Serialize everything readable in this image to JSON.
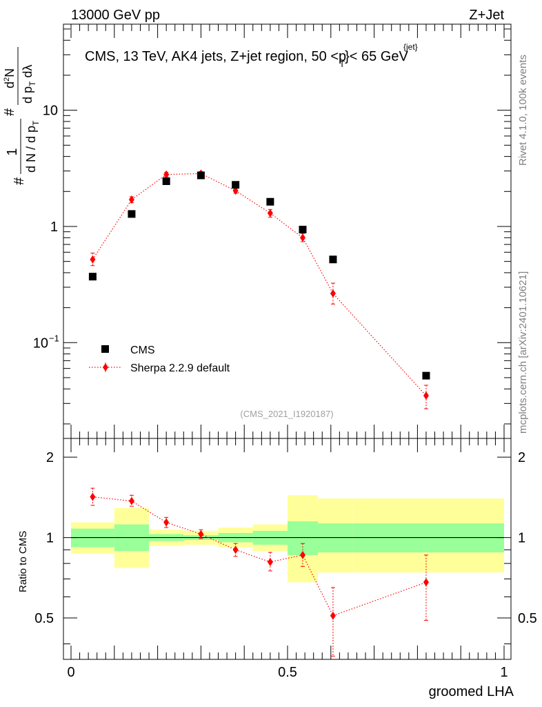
{
  "header": {
    "left_label": "13000 GeV pp",
    "right_label": "Z+Jet"
  },
  "side_labels": {
    "rivet": "Rivet 4.1.0,  100k events",
    "mcplots": "mcplots.cern.ch [arXiv:2401.10621]"
  },
  "chart_data": [
    {
      "type": "scatter",
      "panel": "main",
      "title": "CMS, 13 TeV, AK4 jets, Z+jet region, 50 <p",
      "title_sup": "{jet}",
      "title_sub": "T",
      "title_tail": "}< 65 GeV",
      "watermark": "(CMS_2021_I1920187)",
      "ylabel": {
        "hash1": "#",
        "frac_one_num": "1",
        "frac_one_den_a": "d N / d p",
        "frac_one_den_sub": "T",
        "hash2": "#",
        "frac_two_num_a": "d",
        "frac_two_num_sup": "2",
        "frac_two_num_b": "N",
        "frac_two_den_a": "d p",
        "frac_two_den_sub": "T",
        "frac_two_den_b": " d",
        "frac_two_den_c": "λ"
      },
      "xlim": [
        0,
        1
      ],
      "ylim": [
        0.015,
        55
      ],
      "yscale": "log",
      "y_ticks": [
        {
          "value": 10,
          "label": "10"
        },
        {
          "value": 1,
          "label": "1"
        },
        {
          "value": 0.1,
          "label": "10",
          "sup": "−1"
        }
      ],
      "legend": {
        "position": "lower-left",
        "entries": [
          {
            "label": "CMS",
            "marker": "square",
            "color": "#000000"
          },
          {
            "label": "Sherpa 2.2.9 default",
            "marker": "diamond",
            "color": "#ff0000",
            "line": "dotted"
          }
        ]
      },
      "series": [
        {
          "name": "CMS",
          "color": "#000000",
          "x": [
            0.05,
            0.14,
            0.22,
            0.3,
            0.38,
            0.46,
            0.535,
            0.605,
            0.82
          ],
          "y": [
            0.37,
            1.28,
            2.45,
            2.75,
            2.28,
            1.63,
            0.94,
            0.52,
            0.052
          ]
        },
        {
          "name": "Sherpa 2.2.9 default",
          "color": "#ff0000",
          "x": [
            0.05,
            0.14,
            0.22,
            0.3,
            0.38,
            0.46,
            0.535,
            0.605,
            0.82
          ],
          "y": [
            0.52,
            1.7,
            2.8,
            2.85,
            2.03,
            1.3,
            0.8,
            0.265,
            0.035
          ],
          "y_err_low": [
            0.06,
            0.1,
            0.12,
            0.12,
            0.1,
            0.1,
            0.06,
            0.05,
            0.008
          ],
          "y_err_high": [
            0.07,
            0.1,
            0.12,
            0.12,
            0.1,
            0.1,
            0.07,
            0.06,
            0.008
          ]
        }
      ]
    },
    {
      "type": "scatter",
      "panel": "ratio",
      "ylabel": "Ratio to CMS",
      "xlabel": "groomed LHA",
      "xlim": [
        0,
        1
      ],
      "ylim": [
        0.35,
        2.35
      ],
      "yscale": "log",
      "x_ticks": [
        {
          "value": 0,
          "label": "0"
        },
        {
          "value": 0.5,
          "label": "0.5"
        },
        {
          "value": 1,
          "label": "1"
        }
      ],
      "y_ticks": [
        {
          "value": 2,
          "label": "2"
        },
        {
          "value": 1,
          "label": "1"
        },
        {
          "value": 0.5,
          "label": "0.5"
        }
      ],
      "reference_line": 1,
      "bands": {
        "bins": [
          0,
          0.1,
          0.18,
          0.26,
          0.34,
          0.42,
          0.5,
          0.57,
          0.65,
          1.0
        ],
        "green_low": [
          0.92,
          0.89,
          0.97,
          0.98,
          0.96,
          0.94,
          0.86,
          0.88,
          0.88
        ],
        "green_high": [
          1.08,
          1.12,
          1.03,
          1.02,
          1.04,
          1.06,
          1.15,
          1.13,
          1.13
        ],
        "yellow_low": [
          0.87,
          0.77,
          0.93,
          0.94,
          0.92,
          0.89,
          0.68,
          0.74,
          0.74
        ],
        "yellow_high": [
          1.14,
          1.29,
          1.07,
          1.06,
          1.09,
          1.12,
          1.44,
          1.4,
          1.4
        ],
        "green_color": "#99ff99",
        "yellow_color": "#ffff99"
      },
      "series": [
        {
          "name": "Sherpa 2.2.9 default",
          "color": "#ff0000",
          "x": [
            0.05,
            0.14,
            0.22,
            0.3,
            0.38,
            0.46,
            0.535,
            0.605,
            0.82
          ],
          "y": [
            1.42,
            1.37,
            1.14,
            1.03,
            0.9,
            0.81,
            0.86,
            0.51,
            0.68
          ],
          "y_err_low": [
            0.1,
            0.06,
            0.05,
            0.04,
            0.05,
            0.06,
            0.08,
            0.15,
            0.19
          ],
          "y_err_high": [
            0.11,
            0.07,
            0.05,
            0.04,
            0.05,
            0.07,
            0.09,
            0.14,
            0.18
          ]
        }
      ]
    }
  ]
}
